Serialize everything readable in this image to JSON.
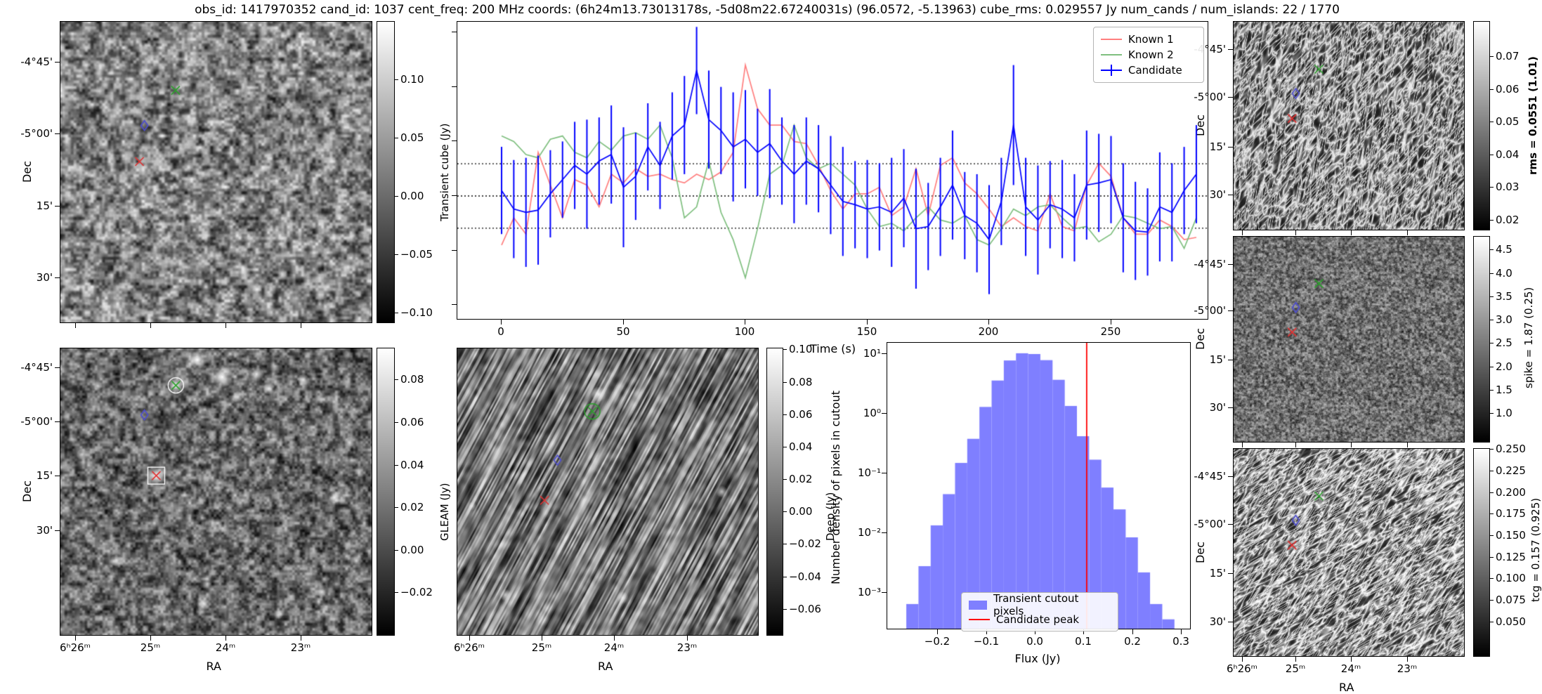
{
  "title": "obs_id: 1417970352 cand_id: 1037 cent_freq: 200 MHz coords: (6h24m13.73013178s, -5d08m22.67240031s) (96.0572, -5.13963) cube_rms: 0.029557 Jy num_cands / num_islands: 22 / 1770",
  "axis": {
    "dec_label": "Dec",
    "ra_label": "RA",
    "dec_ticks": [
      "-4°45'",
      "-5°00'",
      "15'",
      "30'"
    ],
    "ra_ticks": [
      "6ʰ26ᵐ",
      "25ᵐ",
      "24ᵐ",
      "23ᵐ"
    ]
  },
  "colorbars": {
    "transient": {
      "label": "Transient cube (Jy)",
      "bold": false,
      "vmax": 0.15,
      "vmin": -0.109,
      "tick_vals": [
        0.1,
        0.05,
        0.0,
        -0.05,
        -0.1
      ],
      "tick_labels": [
        "0.10",
        "0.05",
        "0.00",
        "−0.05",
        "−0.10"
      ]
    },
    "gleam": {
      "label": "GLEAM (Jy)",
      "bold": false,
      "vmax": 0.095,
      "vmin": -0.0404,
      "tick_vals": [
        0.08,
        0.06,
        0.04,
        0.02,
        0.0,
        -0.02
      ],
      "tick_labels": [
        "0.08",
        "0.06",
        "0.04",
        "0.02",
        "0.00",
        "−0.02"
      ]
    },
    "deep": {
      "label": "Deep (Jy)",
      "bold": false,
      "vmax": 0.101,
      "vmin": -0.0765,
      "tick_vals": [
        0.1,
        0.08,
        0.06,
        0.04,
        0.02,
        0.0,
        -0.02,
        -0.04,
        -0.06
      ],
      "tick_labels": [
        "0.10",
        "0.08",
        "0.06",
        "0.04",
        "0.02",
        "0.00",
        "−0.02",
        "−0.04",
        "−0.06"
      ]
    },
    "rms": {
      "label": "rms = 0.0551 (1.01)",
      "bold": true,
      "vmax": 0.0807,
      "vmin": 0.0168,
      "tick_vals": [
        0.07,
        0.06,
        0.05,
        0.04,
        0.03,
        0.02
      ],
      "tick_labels": [
        "0.07",
        "0.06",
        "0.05",
        "0.04",
        "0.03",
        "0.02"
      ]
    },
    "spike": {
      "label": "spike = 1.87 (0.25)",
      "bold": false,
      "vmax": 4.79,
      "vmin": 0.37,
      "tick_vals": [
        4.5,
        4.0,
        3.5,
        3.0,
        2.5,
        2.0,
        1.5,
        1.0
      ],
      "tick_labels": [
        "4.5",
        "4.0",
        "3.5",
        "3.0",
        "2.5",
        "2.0",
        "1.5",
        "1.0"
      ]
    },
    "tcg": {
      "label": "tcg = 0.157 (0.925)",
      "bold": false,
      "vmax": 0.251,
      "vmin": 0.009,
      "tick_vals": [
        0.25,
        0.225,
        0.2,
        0.175,
        0.15,
        0.125,
        0.1,
        0.075,
        0.05
      ],
      "tick_labels": [
        "0.250",
        "0.225",
        "0.200",
        "0.175",
        "0.150",
        "0.125",
        "0.100",
        "0.075",
        "0.050"
      ]
    }
  },
  "markers": {
    "default": [
      {
        "shape": "x",
        "color": "#2ca02c",
        "fx": 0.37,
        "fy": 0.228
      },
      {
        "shape": "diamond",
        "color": "#4d4dcf",
        "fx": 0.27,
        "fy": 0.345
      },
      {
        "shape": "x",
        "color": "#e03131",
        "fx": 0.254,
        "fy": 0.465
      }
    ],
    "gleam": [
      {
        "shape": "x",
        "color": "#2ca02c",
        "fx": 0.371,
        "fy": 0.129,
        "ring": "#ffffff"
      },
      {
        "shape": "diamond",
        "color": "#4d4dcf",
        "fx": 0.27,
        "fy": 0.232
      },
      {
        "shape": "x",
        "color": "#e03131",
        "fx": 0.308,
        "fy": 0.444,
        "box": "#ffffff"
      }
    ],
    "deep": [
      {
        "shape": "x",
        "color": "#2ca02c",
        "fx": 0.449,
        "fy": 0.22,
        "ring": "#2ca02c"
      },
      {
        "shape": "diamond",
        "color": "#4d4dcf",
        "fx": 0.333,
        "fy": 0.39
      },
      {
        "shape": "x",
        "color": "#e03131",
        "fx": 0.29,
        "fy": 0.53
      }
    ]
  },
  "chart_data": [
    {
      "type": "line",
      "name": "lightcurve",
      "xlabel": "Time (s)",
      "x_ticks": [
        0,
        50,
        100,
        150,
        200,
        250
      ],
      "x_start": 0,
      "x_step": 5,
      "xlim": [
        -18,
        290
      ],
      "ylim": [
        -0.114,
        0.16
      ],
      "threshold_lines": [
        0.0296,
        0.0,
        -0.0296
      ],
      "legend_position": "upper right",
      "series": [
        {
          "name": "Known 1",
          "color": "#ff7f7f",
          "values": [
            -0.045,
            -0.02,
            -0.035,
            0.04,
            0.01,
            -0.02,
            0.015,
            0.01,
            -0.01,
            0.02,
            0.012,
            0.025,
            0.018,
            0.02,
            0.015,
            0.012,
            0.02,
            0.015,
            0.022,
            0.04,
            0.12,
            0.08,
            0.065,
            0.065,
            0.05,
            0.048,
            0.028,
            0.005,
            -0.012,
            0.002,
            0.002,
            0.008,
            -0.018,
            -0.01,
            0.025,
            -0.018,
            0.028,
            0.035,
            0.012,
            0.002,
            -0.012,
            -0.028,
            -0.02,
            -0.028,
            -0.032,
            0.002,
            -0.028,
            -0.032,
            0.01,
            0.03,
            0.018,
            -0.02,
            -0.035,
            -0.035,
            -0.022,
            -0.028,
            -0.04,
            -0.038
          ]
        },
        {
          "name": "Known 2",
          "color": "#7fbf7f",
          "values": [
            0.055,
            0.05,
            0.038,
            0.035,
            0.052,
            0.055,
            0.04,
            0.035,
            0.05,
            0.042,
            0.055,
            0.058,
            0.052,
            0.065,
            0.035,
            -0.02,
            -0.01,
            0.032,
            -0.015,
            -0.04,
            -0.075,
            -0.03,
            0.02,
            0.028,
            0.065,
            0.035,
            0.025,
            0.03,
            0.02,
            0.01,
            -0.012,
            -0.028,
            -0.025,
            -0.032,
            -0.02,
            -0.01,
            -0.022,
            -0.025,
            -0.018,
            -0.04,
            -0.045,
            -0.03,
            -0.012,
            -0.018,
            -0.01,
            -0.008,
            -0.02,
            -0.03,
            -0.028,
            -0.042,
            -0.035,
            -0.018,
            -0.02,
            -0.025,
            -0.03,
            -0.028,
            -0.048,
            -0.02
          ]
        },
        {
          "name": "Candidate",
          "color": "#0000ff",
          "values": [
            0.005,
            -0.012,
            -0.015,
            -0.013,
            0.002,
            0.015,
            0.028,
            0.02,
            0.032,
            0.038,
            0.008,
            0.018,
            0.045,
            0.028,
            0.055,
            0.065,
            0.115,
            0.07,
            0.06,
            0.045,
            0.052,
            0.04,
            0.048,
            0.032,
            0.02,
            0.032,
            0.025,
            0.01,
            -0.005,
            -0.008,
            -0.012,
            -0.01,
            -0.015,
            -0.002,
            -0.03,
            -0.028,
            -0.01,
            0.01,
            -0.018,
            -0.025,
            -0.04,
            -0.005,
            0.065,
            -0.01,
            -0.022,
            -0.008,
            -0.012,
            -0.02,
            0.01,
            0.012,
            0.015,
            -0.02,
            -0.032,
            -0.033,
            -0.01,
            -0.015,
            0.005,
            0.02
          ],
          "errors": [
            0.04,
            0.045,
            0.05,
            0.05,
            0.04,
            0.035,
            0.04,
            0.05,
            0.04,
            0.045,
            0.055,
            0.04,
            0.04,
            0.04,
            0.04,
            0.045,
            0.04,
            0.045,
            0.04,
            0.05,
            0.045,
            0.04,
            0.05,
            0.04,
            0.045,
            0.04,
            0.04,
            0.045,
            0.05,
            0.04,
            0.045,
            0.04,
            0.05,
            0.045,
            0.055,
            0.04,
            0.045,
            0.05,
            0.04,
            0.045,
            0.05,
            0.04,
            0.055,
            0.045,
            0.05,
            0.04,
            0.045,
            0.04,
            0.05,
            0.045,
            0.04,
            0.05,
            0.045,
            0.04,
            0.05,
            0.045,
            0.04,
            0.045
          ]
        }
      ]
    },
    {
      "type": "bar",
      "name": "flux_histogram",
      "xlabel": "Flux (Jy)",
      "ylabel": "Number density of pixels in cutout",
      "yscale": "log",
      "bar_color": "#7f7fff",
      "line_color": "#ff0000",
      "candidate_peak": 0.105,
      "bin_width": 0.025,
      "bin_centers": [
        -0.2525,
        -0.2275,
        -0.2025,
        -0.1775,
        -0.1525,
        -0.1275,
        -0.1025,
        -0.0775,
        -0.0525,
        -0.0275,
        -0.0025,
        0.0225,
        0.0475,
        0.0725,
        0.0975,
        0.1225,
        0.1475,
        0.1725,
        0.1975,
        0.2225,
        0.2475,
        0.2725
      ],
      "values": [
        0.00065,
        0.0028,
        0.0135,
        0.045,
        0.15,
        0.38,
        1.3,
        3.6,
        7.8,
        10.3,
        10.0,
        7.9,
        3.7,
        1.35,
        0.42,
        0.17,
        0.058,
        0.025,
        0.0085,
        0.0022,
        0.00065,
        0.00036
      ],
      "x_tick_vals": [
        -0.2,
        -0.1,
        0.0,
        0.1,
        0.2,
        0.3
      ],
      "x_tick_labels": [
        "−0.2",
        "−0.1",
        "0.0",
        "0.1",
        "0.2",
        "0.3"
      ],
      "y_tick_vals": [
        10,
        1,
        0.1,
        0.01,
        0.001
      ],
      "y_tick_labels": [
        "10¹",
        "10⁰",
        "10⁻¹",
        "10⁻²",
        "10⁻³"
      ],
      "xlim": [
        -0.31,
        0.325
      ],
      "ylim": [
        0.00023,
        15.5
      ],
      "legend": [
        "Transient cutout pixels",
        "Candidate peak"
      ],
      "legend_position": "lower center"
    }
  ]
}
